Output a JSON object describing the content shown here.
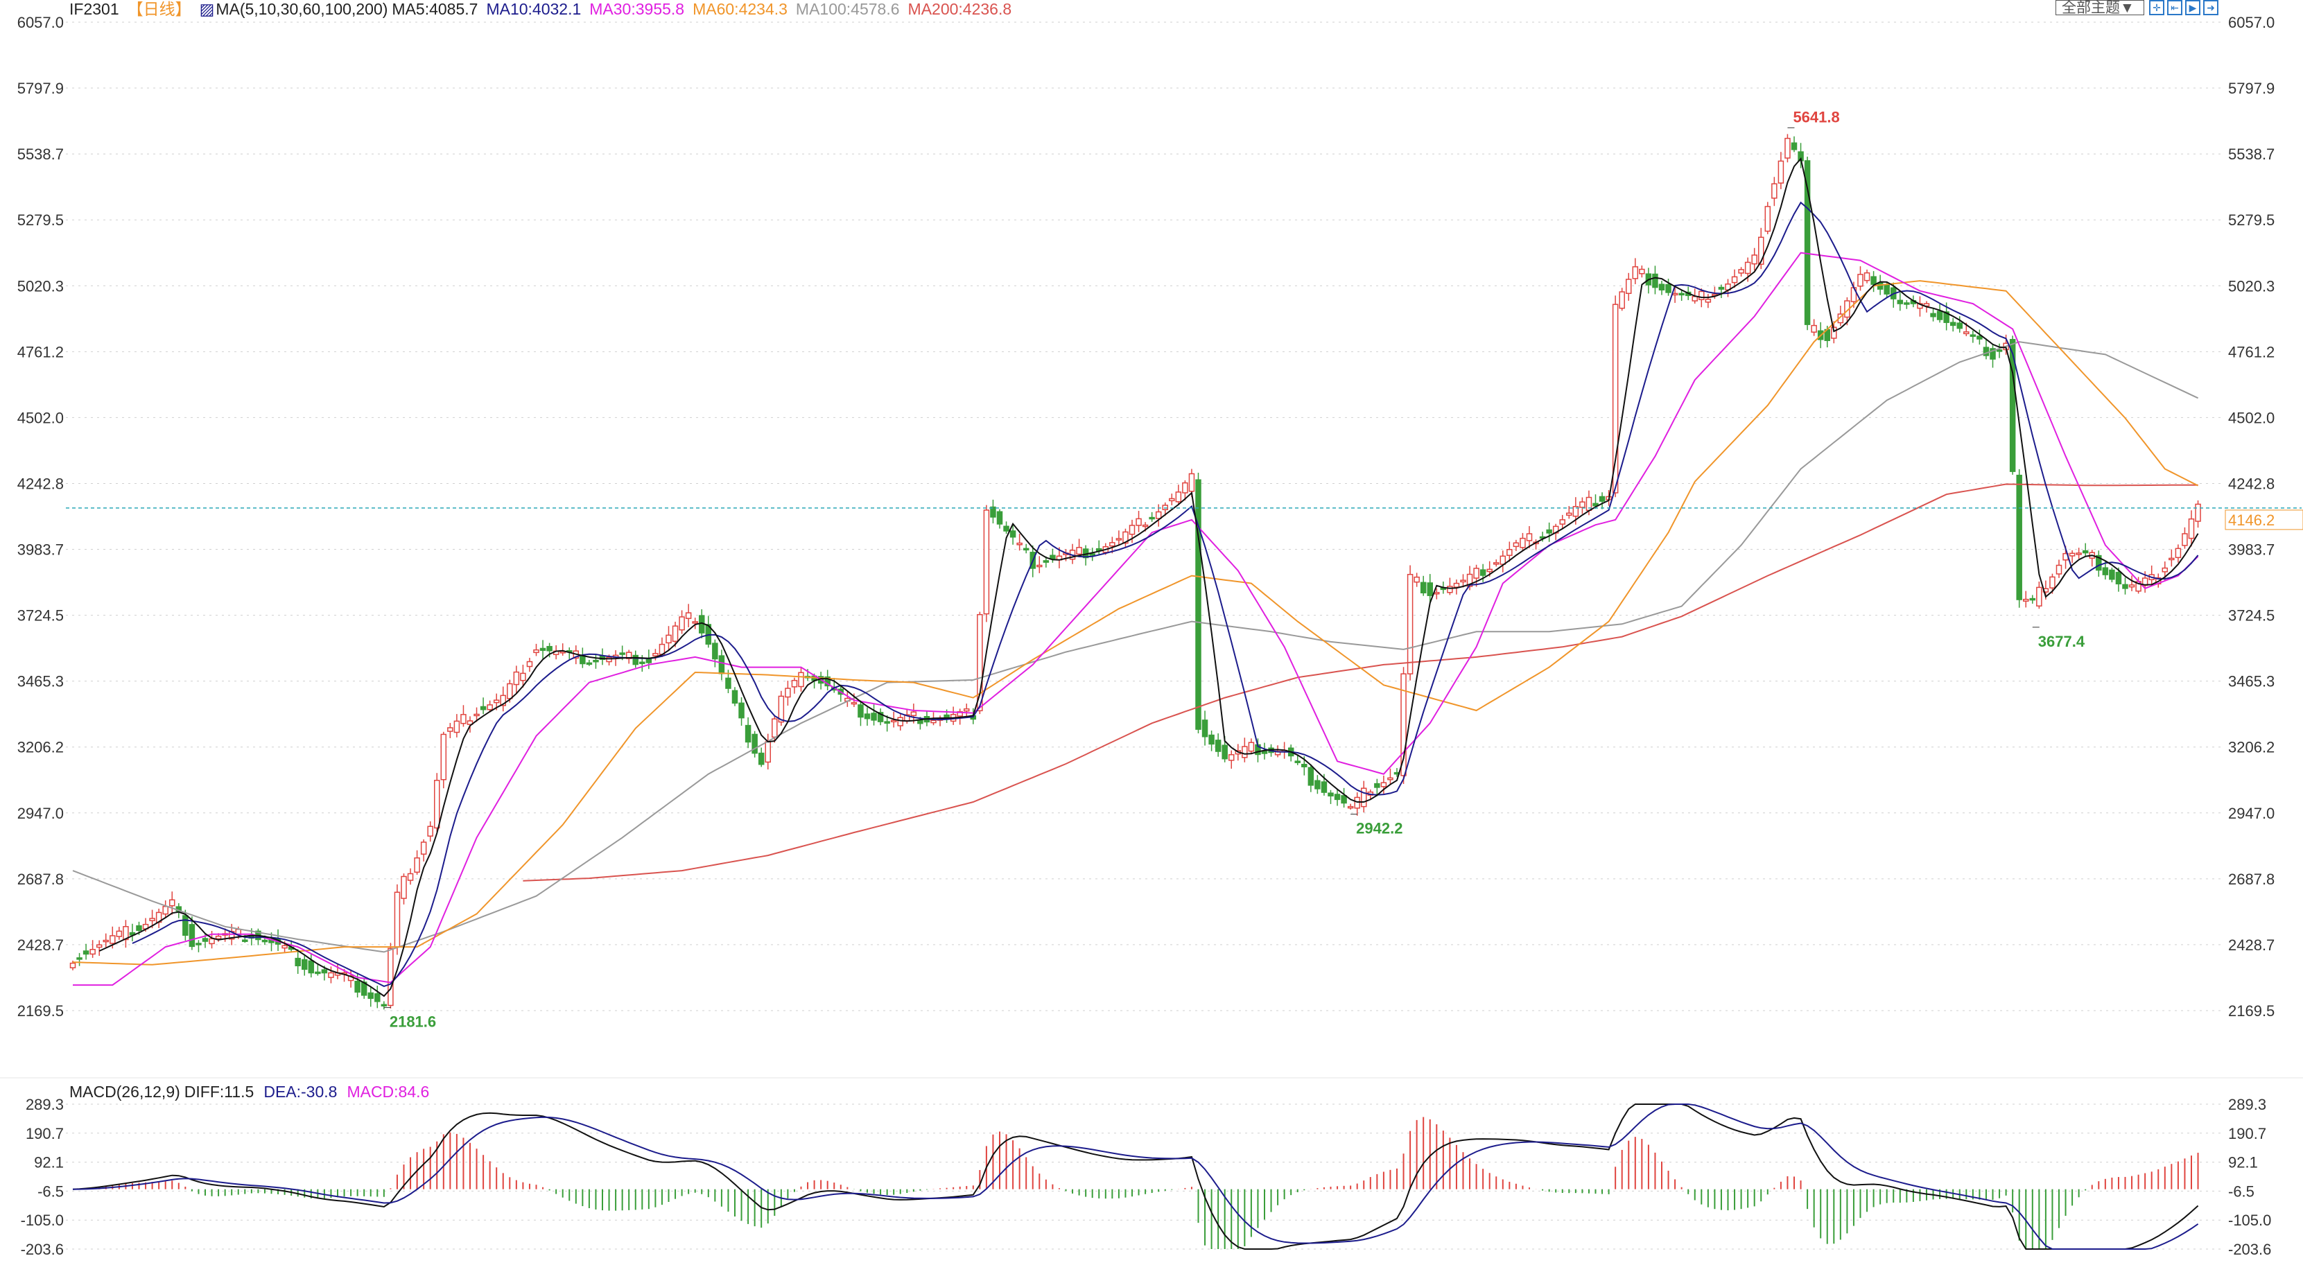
{
  "header": {
    "symbol": "IF2301",
    "period": "【日线】",
    "ma_label": "MA(5,10,30,60,100,200)",
    "ma5": "MA5:4085.7",
    "ma10": "MA10:4032.1",
    "ma30": "MA30:3955.8",
    "ma60": "MA60:4234.3",
    "ma100": "MA100:4578.6",
    "ma200": "MA200:4236.8"
  },
  "toolbar": {
    "theme": "全部主题▼",
    "icons": [
      "crosshair-icon",
      "zoom-start-icon",
      "play-icon",
      "move-right-icon"
    ]
  },
  "macd_header": {
    "label": "MACD(26,12,9)",
    "diff": "DIFF:11.5",
    "dea": "DEA:-30.8",
    "macd": "MACD:84.6"
  },
  "colors": {
    "up": "#e0443f",
    "down": "#3a9e3a",
    "ma5": "#111111",
    "ma10": "#1c1c8c",
    "ma30": "#e020e0",
    "ma60": "#f0952a",
    "ma100": "#999999",
    "ma200": "#d9534f",
    "last": "#f0952a",
    "grid": "#cfcfcf"
  },
  "chart_data": {
    "type": "candlestick",
    "price_axis": {
      "ticks": [
        "6057.0",
        "5797.9",
        "5538.7",
        "5279.5",
        "5020.3",
        "4761.2",
        "4502.0",
        "4242.8",
        "3983.7",
        "3724.5",
        "3465.3",
        "3206.2",
        "2947.0",
        "2687.8",
        "2428.7",
        "2169.5"
      ],
      "range": [
        2169.5,
        6057.0
      ]
    },
    "macd_axis": {
      "ticks": [
        "289.3",
        "190.7",
        "92.1",
        "-6.5",
        "-105.0",
        "-203.6"
      ],
      "range": [
        -203.6,
        289.3
      ]
    },
    "bar_count": 322,
    "close_path": [
      [
        0,
        2380
      ],
      [
        5,
        2440
      ],
      [
        10,
        2500
      ],
      [
        14,
        2570
      ],
      [
        15,
        2590
      ],
      [
        18,
        2440
      ],
      [
        23,
        2460
      ],
      [
        27,
        2470
      ],
      [
        32,
        2410
      ],
      [
        36,
        2330
      ],
      [
        41,
        2300
      ],
      [
        47,
        2190
      ],
      [
        49,
        2620
      ],
      [
        54,
        2900
      ],
      [
        56,
        3250
      ],
      [
        61,
        3350
      ],
      [
        65,
        3400
      ],
      [
        70,
        3600
      ],
      [
        74,
        3570
      ],
      [
        78,
        3550
      ],
      [
        83,
        3560
      ],
      [
        87,
        3550
      ],
      [
        92,
        3700
      ],
      [
        94,
        3720
      ],
      [
        96,
        3620
      ],
      [
        101,
        3300
      ],
      [
        104,
        3150
      ],
      [
        107,
        3400
      ],
      [
        111,
        3500
      ],
      [
        114,
        3450
      ],
      [
        118,
        3360
      ],
      [
        123,
        3300
      ],
      [
        127,
        3320
      ],
      [
        132,
        3320
      ],
      [
        136,
        3340
      ],
      [
        138,
        4150
      ],
      [
        141,
        4050
      ],
      [
        145,
        3930
      ],
      [
        150,
        3960
      ],
      [
        154,
        3980
      ],
      [
        158,
        4020
      ],
      [
        163,
        4120
      ],
      [
        167,
        4200
      ],
      [
        169,
        4260
      ],
      [
        170,
        3300
      ],
      [
        174,
        3160
      ],
      [
        178,
        3200
      ],
      [
        183,
        3190
      ],
      [
        187,
        3080
      ],
      [
        193,
        2960
      ],
      [
        196,
        3050
      ],
      [
        200,
        3100
      ],
      [
        202,
        3870
      ],
      [
        205,
        3820
      ],
      [
        210,
        3850
      ],
      [
        214,
        3920
      ],
      [
        218,
        4000
      ],
      [
        223,
        4060
      ],
      [
        227,
        4140
      ],
      [
        232,
        4200
      ],
      [
        233,
        4950
      ],
      [
        236,
        5080
      ],
      [
        241,
        5000
      ],
      [
        245,
        4960
      ],
      [
        250,
        5030
      ],
      [
        254,
        5120
      ],
      [
        256,
        5350
      ],
      [
        259,
        5600
      ],
      [
        261,
        5500
      ],
      [
        262,
        4850
      ],
      [
        265,
        4820
      ],
      [
        270,
        5050
      ],
      [
        272,
        5050
      ],
      [
        276,
        4950
      ],
      [
        281,
        4920
      ],
      [
        285,
        4850
      ],
      [
        290,
        4750
      ],
      [
        292,
        4800
      ],
      [
        294,
        3780
      ],
      [
        296,
        3770
      ],
      [
        301,
        3970
      ],
      [
        305,
        3950
      ],
      [
        310,
        3830
      ],
      [
        314,
        3860
      ],
      [
        318,
        3990
      ],
      [
        321,
        4146.2
      ]
    ],
    "ma30": [
      [
        0,
        2270
      ],
      [
        6,
        2270
      ],
      [
        14,
        2420
      ],
      [
        21,
        2470
      ],
      [
        27,
        2470
      ],
      [
        34,
        2420
      ],
      [
        43,
        2300
      ],
      [
        48,
        2280
      ],
      [
        54,
        2420
      ],
      [
        61,
        2850
      ],
      [
        70,
        3250
      ],
      [
        78,
        3460
      ],
      [
        87,
        3530
      ],
      [
        94,
        3560
      ],
      [
        101,
        3520
      ],
      [
        110,
        3520
      ],
      [
        118,
        3390
      ],
      [
        127,
        3350
      ],
      [
        136,
        3340
      ],
      [
        145,
        3530
      ],
      [
        154,
        3790
      ],
      [
        163,
        4050
      ],
      [
        169,
        4100
      ],
      [
        176,
        3900
      ],
      [
        183,
        3600
      ],
      [
        191,
        3150
      ],
      [
        198,
        3100
      ],
      [
        205,
        3300
      ],
      [
        212,
        3600
      ],
      [
        216,
        3850
      ],
      [
        223,
        4000
      ],
      [
        230,
        4080
      ],
      [
        233,
        4100
      ],
      [
        239,
        4350
      ],
      [
        245,
        4650
      ],
      [
        254,
        4900
      ],
      [
        261,
        5150
      ],
      [
        270,
        5120
      ],
      [
        279,
        5000
      ],
      [
        287,
        4950
      ],
      [
        293,
        4850
      ],
      [
        301,
        4350
      ],
      [
        307,
        4000
      ],
      [
        313,
        3830
      ],
      [
        318,
        3880
      ],
      [
        321,
        3955.8
      ]
    ],
    "ma60": [
      [
        0,
        2360
      ],
      [
        12,
        2350
      ],
      [
        25,
        2380
      ],
      [
        41,
        2420
      ],
      [
        52,
        2420
      ],
      [
        61,
        2550
      ],
      [
        74,
        2900
      ],
      [
        85,
        3280
      ],
      [
        94,
        3500
      ],
      [
        105,
        3490
      ],
      [
        118,
        3470
      ],
      [
        127,
        3460
      ],
      [
        136,
        3400
      ],
      [
        145,
        3550
      ],
      [
        158,
        3750
      ],
      [
        169,
        3880
      ],
      [
        178,
        3850
      ],
      [
        185,
        3700
      ],
      [
        198,
        3450
      ],
      [
        212,
        3350
      ],
      [
        223,
        3520
      ],
      [
        232,
        3700
      ],
      [
        241,
        4050
      ],
      [
        245,
        4250
      ],
      [
        256,
        4550
      ],
      [
        263,
        4800
      ],
      [
        272,
        5020
      ],
      [
        279,
        5040
      ],
      [
        292,
        5000
      ],
      [
        301,
        4750
      ],
      [
        310,
        4500
      ],
      [
        316,
        4300
      ],
      [
        321,
        4234.3
      ]
    ],
    "ma100": [
      [
        0,
        2720
      ],
      [
        12,
        2600
      ],
      [
        23,
        2500
      ],
      [
        34,
        2450
      ],
      [
        47,
        2400
      ],
      [
        56,
        2480
      ],
      [
        70,
        2620
      ],
      [
        83,
        2850
      ],
      [
        96,
        3100
      ],
      [
        110,
        3300
      ],
      [
        123,
        3460
      ],
      [
        136,
        3470
      ],
      [
        150,
        3580
      ],
      [
        161,
        3650
      ],
      [
        169,
        3700
      ],
      [
        181,
        3660
      ],
      [
        190,
        3620
      ],
      [
        201,
        3590
      ],
      [
        212,
        3660
      ],
      [
        223,
        3660
      ],
      [
        234,
        3690
      ],
      [
        243,
        3760
      ],
      [
        252,
        4000
      ],
      [
        261,
        4300
      ],
      [
        274,
        4570
      ],
      [
        285,
        4720
      ],
      [
        294,
        4800
      ],
      [
        307,
        4750
      ],
      [
        321,
        4578.6
      ]
    ],
    "ma200": [
      [
        68,
        2680
      ],
      [
        78,
        2690
      ],
      [
        92,
        2720
      ],
      [
        105,
        2780
      ],
      [
        118,
        2870
      ],
      [
        136,
        2990
      ],
      [
        150,
        3140
      ],
      [
        163,
        3300
      ],
      [
        174,
        3400
      ],
      [
        185,
        3480
      ],
      [
        198,
        3530
      ],
      [
        212,
        3560
      ],
      [
        225,
        3600
      ],
      [
        234,
        3640
      ],
      [
        243,
        3720
      ],
      [
        256,
        3880
      ],
      [
        270,
        4040
      ],
      [
        283,
        4200
      ],
      [
        292,
        4240
      ],
      [
        305,
        4235
      ],
      [
        321,
        4236.8
      ]
    ],
    "annotations": [
      {
        "bar": 259,
        "value": 5641.8,
        "text": "5641.8",
        "kind": "high"
      },
      {
        "bar": 47,
        "value": 2181.6,
        "text": "2181.6",
        "kind": "low"
      },
      {
        "bar": 193,
        "value": 2942.2,
        "text": "2942.2",
        "kind": "low"
      },
      {
        "bar": 296,
        "value": 3677.4,
        "text": "3677.4",
        "kind": "low"
      }
    ],
    "last_price": {
      "value": 4146.2,
      "text": "4146.2"
    }
  }
}
